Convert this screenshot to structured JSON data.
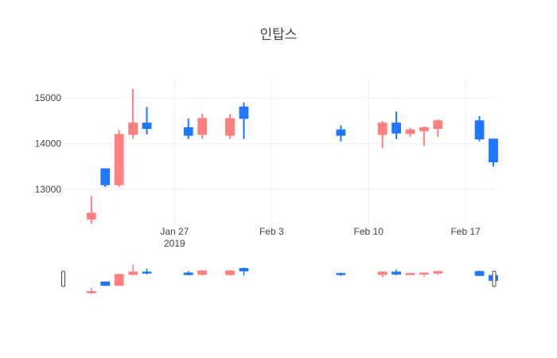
{
  "chart_data": {
    "type": "candlestick",
    "title": "인탑스",
    "increasing_color": "#ff7f7f",
    "decreasing_color": "#1f77ff",
    "ylim": [
      12200,
      15400
    ],
    "xlim": [
      "2019-01-19",
      "2019-02-19"
    ],
    "y_ticks": [
      13000,
      14000,
      15000
    ],
    "y_tick_labels": [
      "13000",
      "14000",
      "15000"
    ],
    "x_ticks": [
      {
        "date": "2019-01-27",
        "label": "Jan 27",
        "sublabel": "2019"
      },
      {
        "date": "2019-02-03",
        "label": "Feb 3",
        "sublabel": ""
      },
      {
        "date": "2019-02-10",
        "label": "Feb 10",
        "sublabel": ""
      },
      {
        "date": "2019-02-17",
        "label": "Feb 17",
        "sublabel": ""
      }
    ],
    "candles": [
      {
        "date": "2019-01-21",
        "open": 12350,
        "high": 12850,
        "low": 12250,
        "close": 12480
      },
      {
        "date": "2019-01-22",
        "open": 13450,
        "high": 13450,
        "low": 13050,
        "close": 13100
      },
      {
        "date": "2019-01-23",
        "open": 13100,
        "high": 14300,
        "low": 13050,
        "close": 14200
      },
      {
        "date": "2019-01-24",
        "open": 14200,
        "high": 15200,
        "low": 14100,
        "close": 14450
      },
      {
        "date": "2019-01-25",
        "open": 14450,
        "high": 14800,
        "low": 14200,
        "close": 14330
      },
      {
        "date": "2019-01-28",
        "open": 14350,
        "high": 14550,
        "low": 14100,
        "close": 14180
      },
      {
        "date": "2019-01-29",
        "open": 14200,
        "high": 14650,
        "low": 14100,
        "close": 14550
      },
      {
        "date": "2019-01-31",
        "open": 14180,
        "high": 14650,
        "low": 14100,
        "close": 14550
      },
      {
        "date": "2019-02-01",
        "open": 14800,
        "high": 14900,
        "low": 14100,
        "close": 14550
      },
      {
        "date": "2019-02-08",
        "open": 14300,
        "high": 14400,
        "low": 14050,
        "close": 14180
      },
      {
        "date": "2019-02-11",
        "open": 14200,
        "high": 14500,
        "low": 13900,
        "close": 14450
      },
      {
        "date": "2019-02-12",
        "open": 14450,
        "high": 14700,
        "low": 14100,
        "close": 14230
      },
      {
        "date": "2019-02-13",
        "open": 14220,
        "high": 14350,
        "low": 14150,
        "close": 14300
      },
      {
        "date": "2019-02-14",
        "open": 14280,
        "high": 14380,
        "low": 13950,
        "close": 14350
      },
      {
        "date": "2019-02-15",
        "open": 14330,
        "high": 14530,
        "low": 14150,
        "close": 14500
      },
      {
        "date": "2019-02-18",
        "open": 14500,
        "high": 14600,
        "low": 14050,
        "close": 14100
      },
      {
        "date": "2019-02-19",
        "open": 14100,
        "high": 14100,
        "low": 13500,
        "close": 13600
      }
    ]
  }
}
